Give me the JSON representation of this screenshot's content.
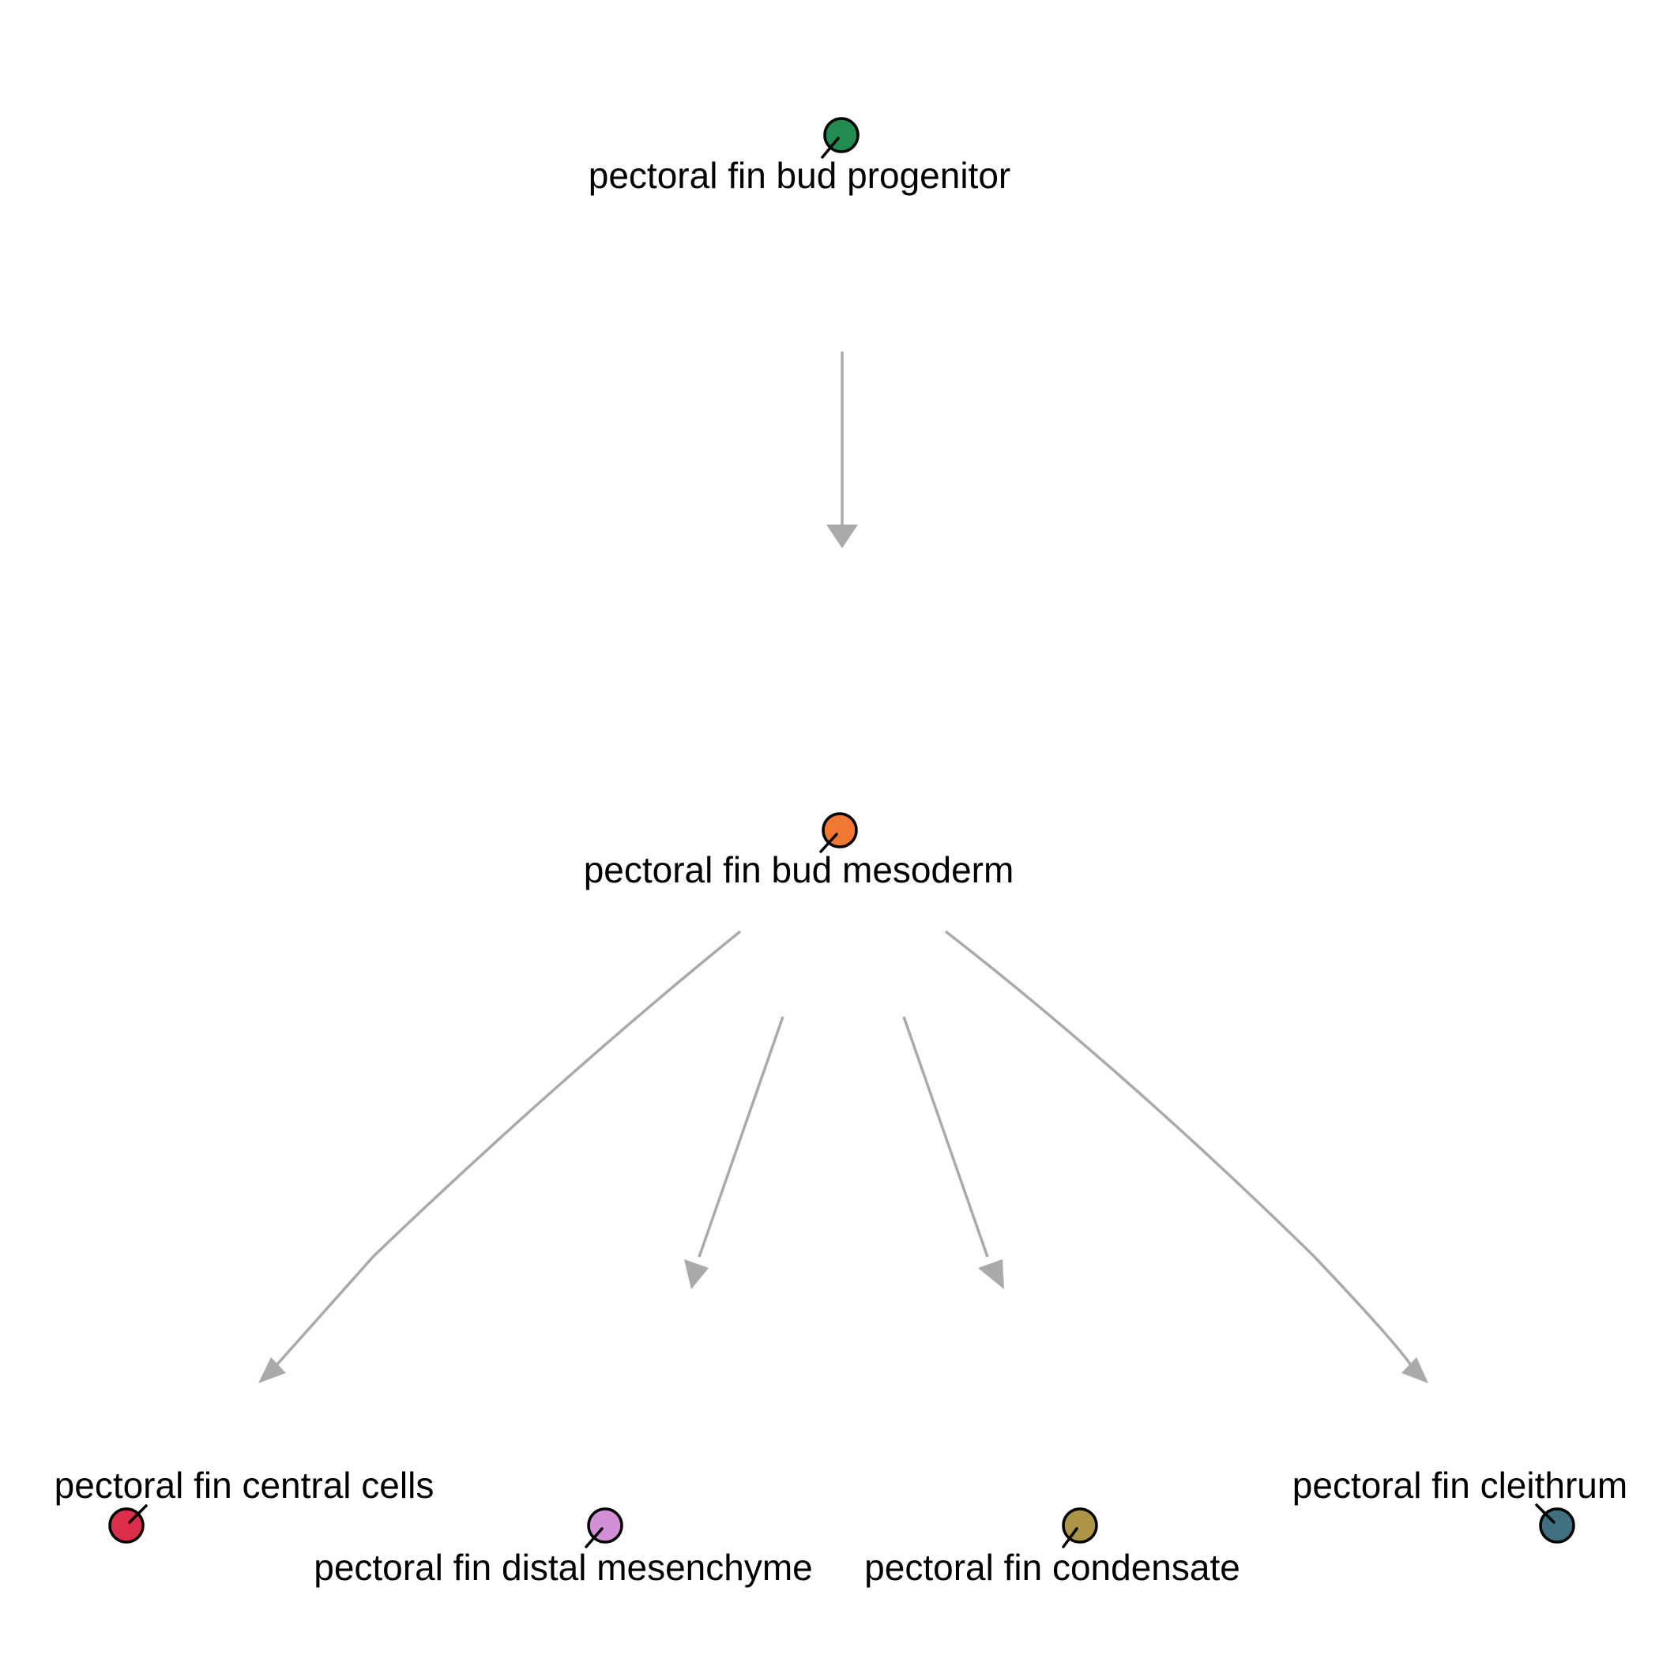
{
  "diagram": {
    "type": "lineage-tree",
    "edge_color": "#aaaaaa",
    "nodes": [
      {
        "id": "progenitor",
        "label": "pectoral fin bud progenitor",
        "color": "#228b4f"
      },
      {
        "id": "mesoderm",
        "label": "pectoral fin bud mesoderm",
        "color": "#f07833"
      },
      {
        "id": "central",
        "label": "pectoral fin central cells",
        "color": "#dc2d4b"
      },
      {
        "id": "distal",
        "label": "pectoral fin distal mesenchyme",
        "color": "#d38fd6"
      },
      {
        "id": "condensate",
        "label": "pectoral fin condensate",
        "color": "#ae9446"
      },
      {
        "id": "cleithrum",
        "label": "pectoral fin cleithrum",
        "color": "#40707f"
      }
    ],
    "edges": [
      {
        "from": "progenitor",
        "to": "mesoderm"
      },
      {
        "from": "mesoderm",
        "to": "central"
      },
      {
        "from": "mesoderm",
        "to": "distal"
      },
      {
        "from": "mesoderm",
        "to": "condensate"
      },
      {
        "from": "mesoderm",
        "to": "cleithrum"
      }
    ]
  }
}
